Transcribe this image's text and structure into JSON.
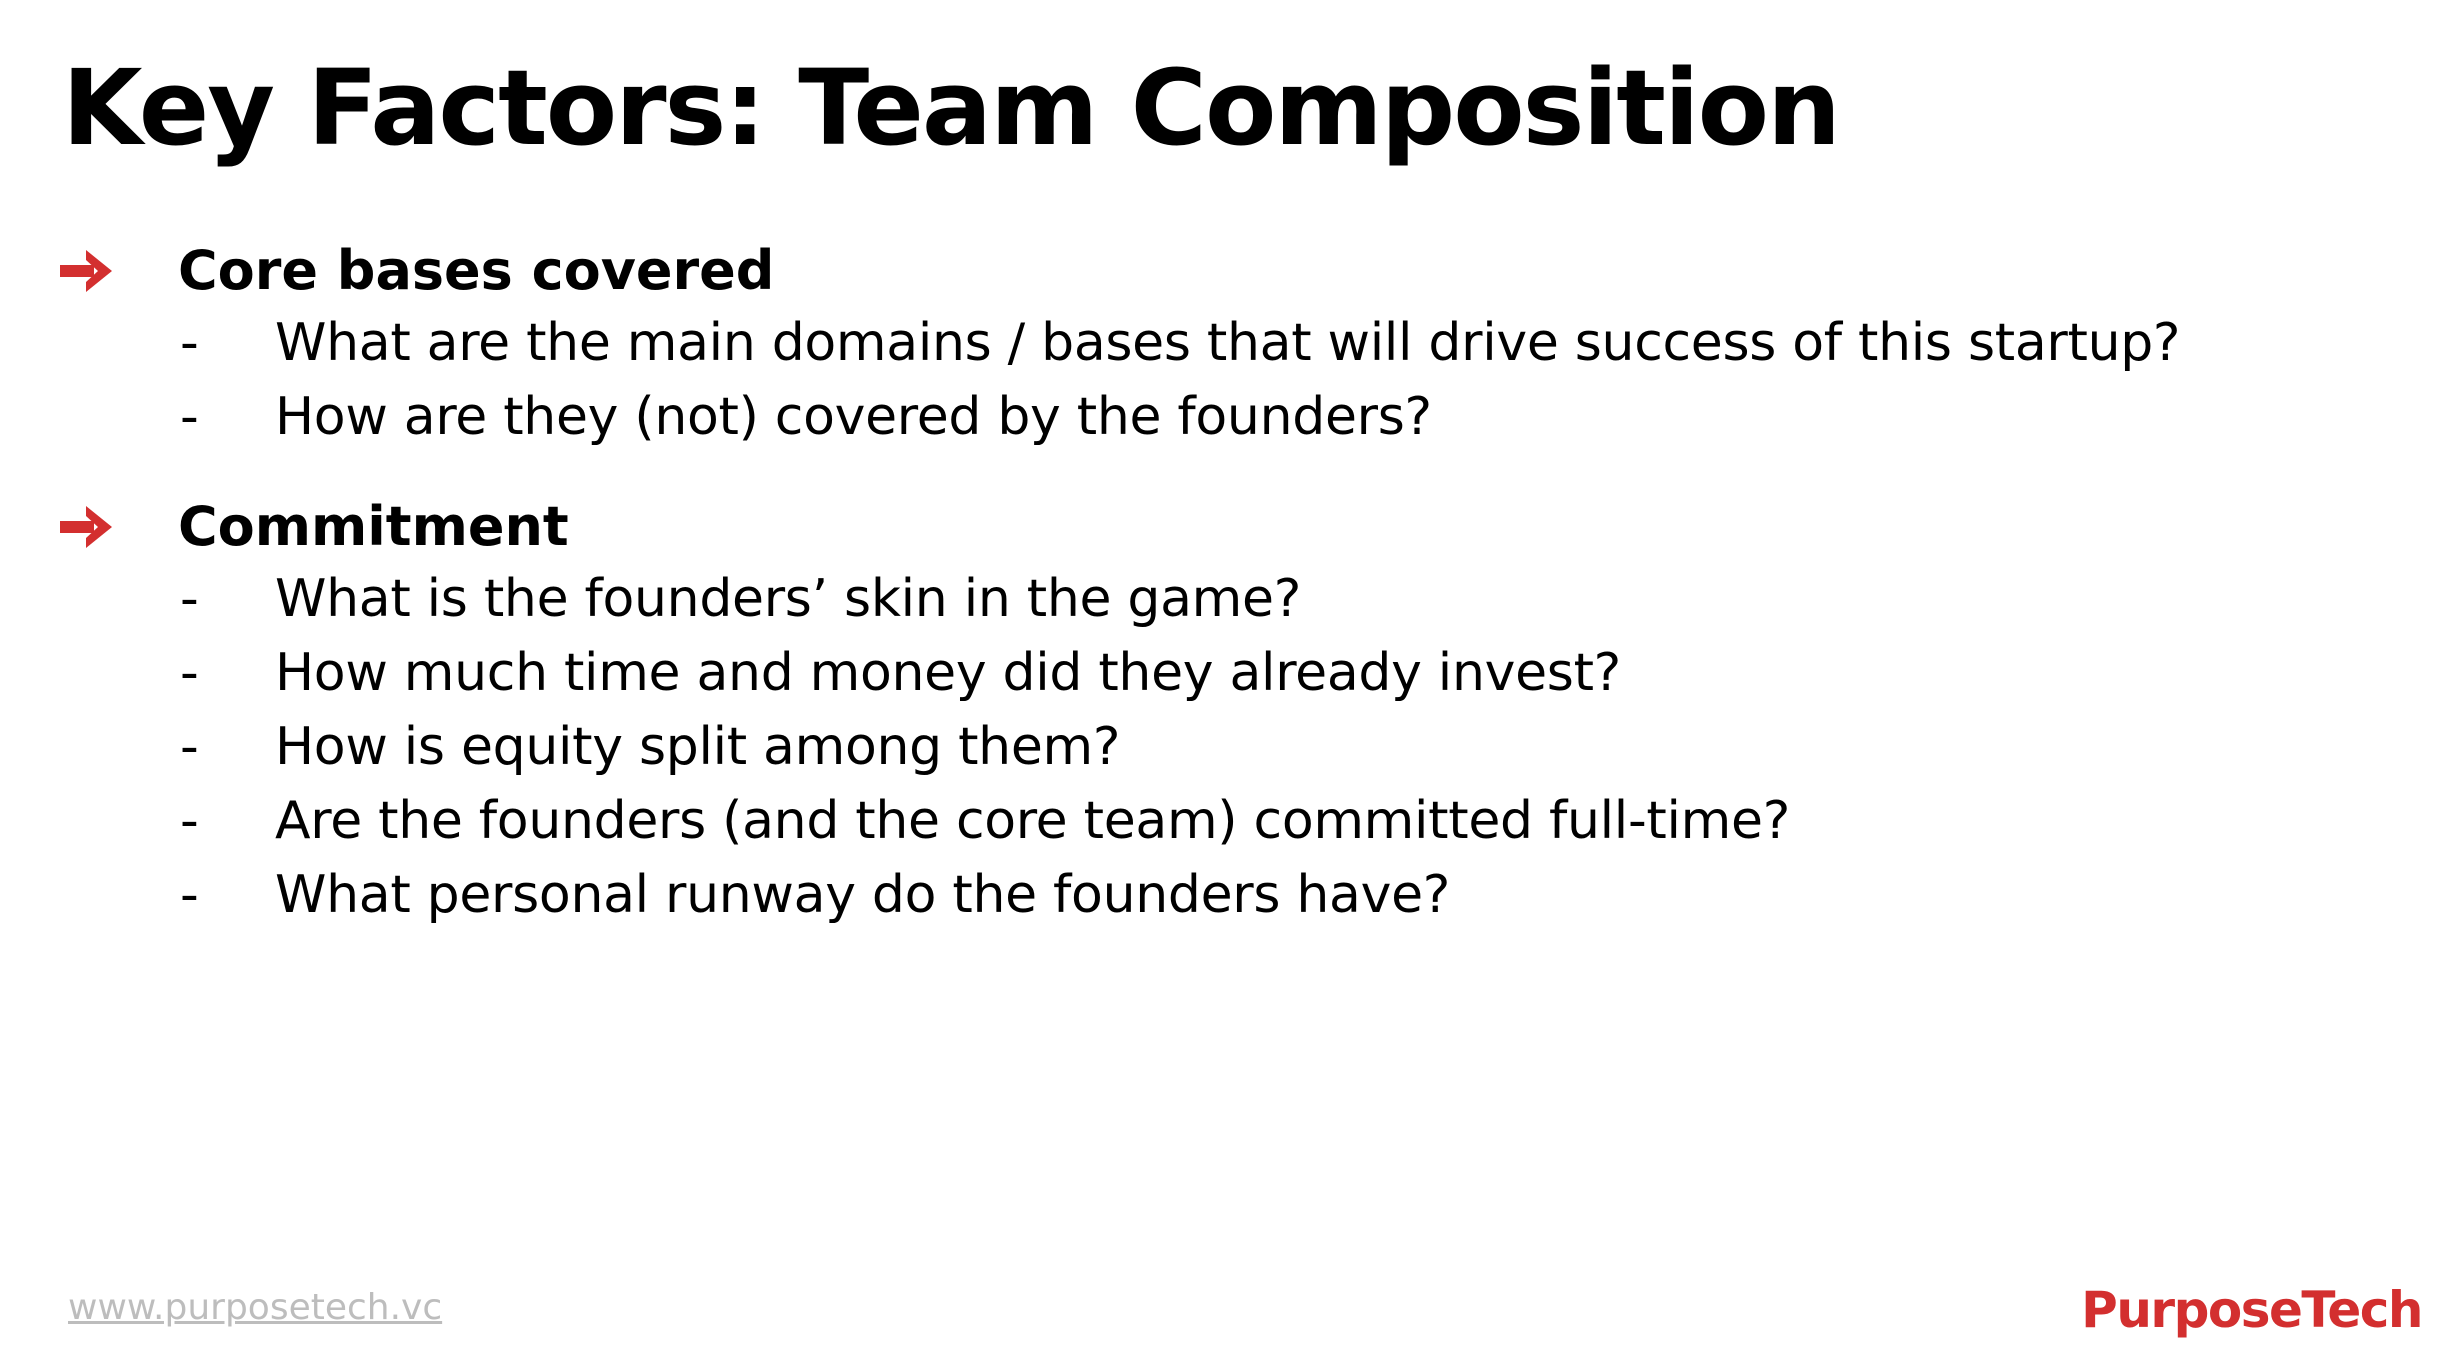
{
  "slide": {
    "title": "Key Factors: Team Composition",
    "sections": [
      {
        "heading": "Core bases covered",
        "marker_icon": "right-arrow-icon",
        "bullets": [
          "What are the main domains / bases that will drive success of this startup?",
          "How are they (not) covered by the founders?"
        ]
      },
      {
        "heading": "Commitment",
        "marker_icon": "right-arrow-icon",
        "bullets": [
          "What is the founders’ skin in the game?",
          "How much time and money did they already invest?",
          "How is equity split among them?",
          "Are the founders (and the core team) committed full-time?",
          "What personal runway do the founders have?"
        ]
      }
    ],
    "bullet_marker": "-",
    "footer": {
      "url": "www.purposetech.vc",
      "brand": "PurposeTech"
    }
  },
  "colors": {
    "accent": "#d32f2f",
    "text": "#000000",
    "footer_url": "#bdbdbd",
    "brand": "#d32f2f",
    "background": "#ffffff"
  }
}
